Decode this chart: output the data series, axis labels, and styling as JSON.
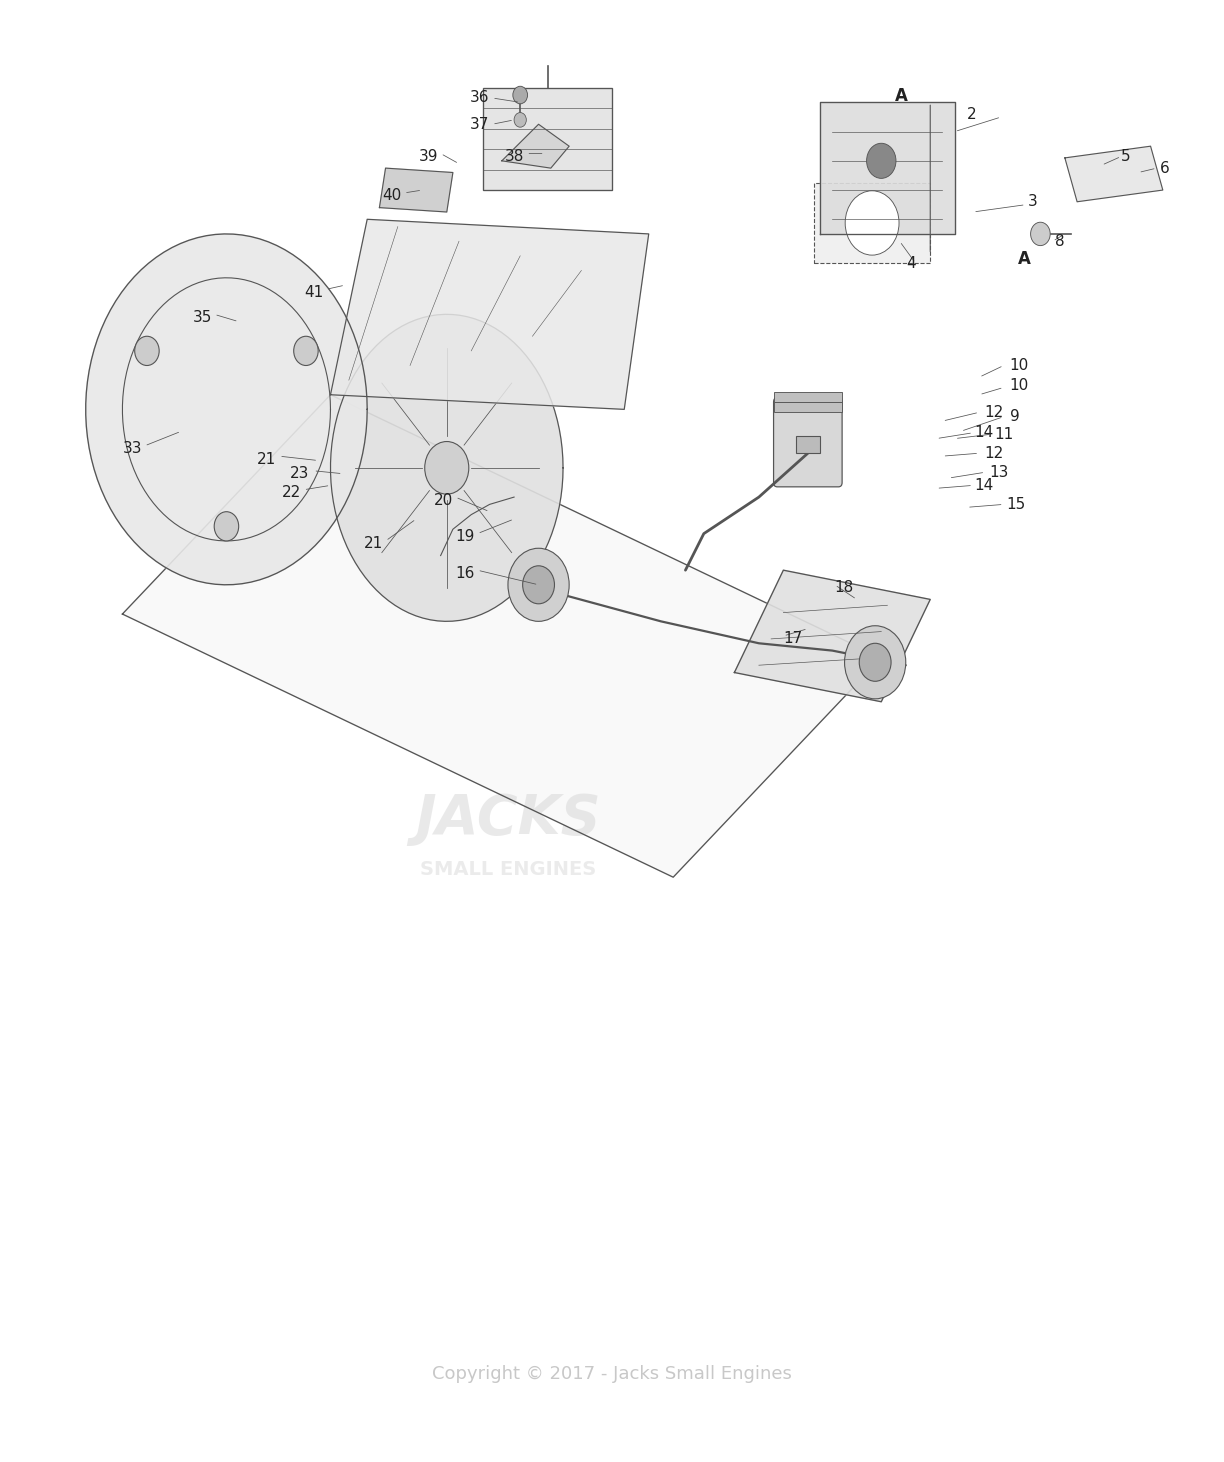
{
  "bg_color": "#ffffff",
  "fig_width": 12.24,
  "fig_height": 14.62,
  "copyright_text": "Copyright © 2017 - Jacks Small Engines",
  "copyright_color": "#c8c8c8",
  "copyright_fontsize": 13,
  "watermark_text1": "JACKS",
  "watermark_text2": "SMALL ENGINES",
  "watermark_color": "#d8d8d8",
  "label_color": "#222222",
  "label_fontsize": 11,
  "line_color": "#555555",
  "line_width": 0.8
}
